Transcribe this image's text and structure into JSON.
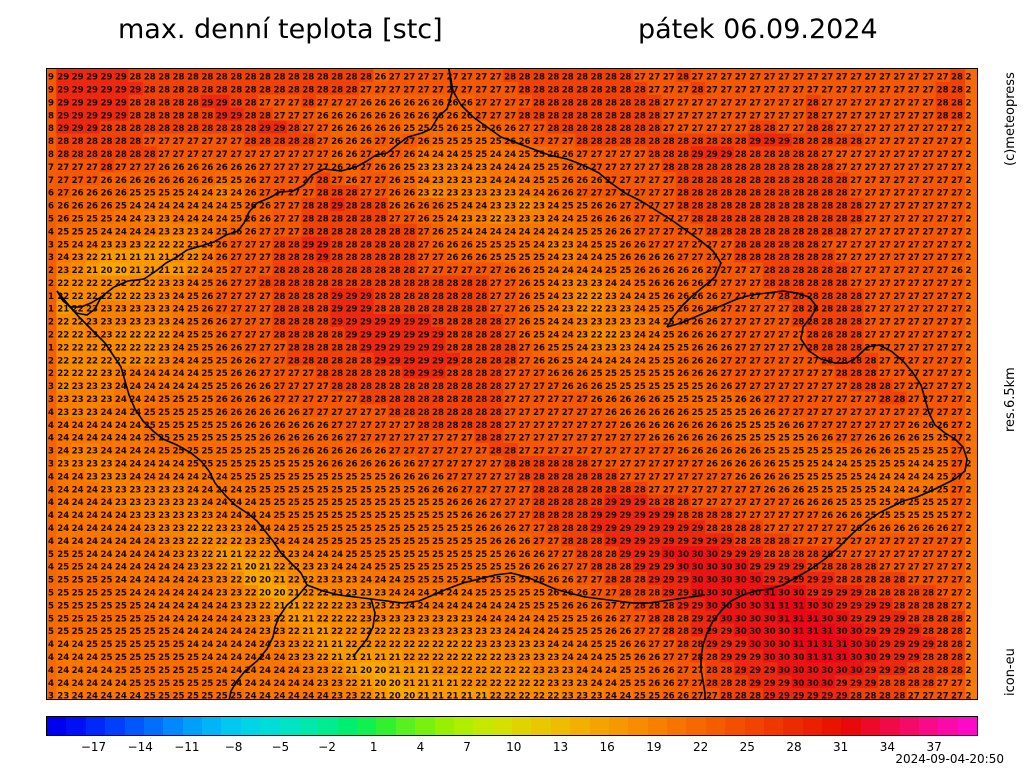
{
  "header": {
    "title_left": "max. denní teplota [stc]",
    "title_right": "pátek 06.09.2024"
  },
  "side_labels": {
    "credit": "(c)meteopress",
    "resolution": "res.6.5km",
    "model": "icon-eu"
  },
  "footer": {
    "timestamp": "2024-09-04-20:50"
  },
  "colors": {
    "background": "#ffffff",
    "border": "#000000",
    "value_text": "#1a0a00",
    "country_border": "#000000"
  },
  "map": {
    "value_grid": [
      "9 29 29 29 29 29 28 28 28 28 28 28 28 28 28 28 28 28 28 28 28 28 28 26 27 27 27 27 27 27 27 27 28 28 28 28 28 28 28 28 28 27 27 27 28 27 27 27 27 27 27 27 27 27 27 27 27 27 27 27 27 27 27 28 2",
      "9 29 29 29 29 29 29 28 28 28 28 28 28 28 28 28 28 28 28 28 28 28 27 27 27 27 27 27 27 27 27 27 27 28 28 28 28 28 28 28 28 28 27 27 27 28 27 27 27 27 27 27 27 27 27 27 27 27 27 27 27 27 28 28 2",
      "9 29 29 29 29 29 28 28 28 28 28 29 29 28 28 27 27 27 28 27 27 27 26 26 26 26 26 26 26 26 27 27 27 27 28 28 28 28 28 28 28 28 28 27 27 27 27 27 27 27 27 27 27 28 27 27 27 27 27 27 27 27 28 28 2",
      "8 29 29 29 29 29 28 28 28 28 28 28 29 29 28 28 27 27 27 26 26 26 26 26 26 26 26 26 26 26 27 27 27 28 28 28 28 28 28 28 28 28 28 27 27 27 27 27 27 27 27 27 27 28 27 27 27 27 27 27 27 27 28 28 2",
      "8 29 29 29 28 28 28 28 28 28 28 28 28 28 28 29 29 28 27 27 26 26 26 26 26 25 25 25 26 25 25 26 26 27 27 28 28 28 28 28 28 28 28 27 27 27 27 27 27 28 28 27 27 28 28 27 27 27 27 27 27 27 27 27 2",
      "8 28 28 28 28 28 28 27 27 27 27 27 27 27 28 28 28 28 28 27 26 26 26 27 26 27 26 25 25 25 25 25 26 26 27 27 27 28 28 28 28 28 28 28 28 28 28 28 28 29 29 29 28 28 28 28 28 27 27 27 27 27 27 27 2",
      "8 28 28 28 28 28 28 28 27 27 27 27 27 27 27 27 27 27 27 27 26 26 27 26 27 26 24 24 24 25 25 24 24 25 25 26 26 27 27 27 27 27 28 28 28 29 29 29 28 28 28 28 28 28 27 27 27 27 27 27 27 27 27 27 2",
      "7 27 27 27 28 27 27 27 26 26 26 26 26 26 26 27 27 27 27 27 26 26 27 26 26 25 23 23 23 24 23 24 24 24 25 25 26 26 27 27 27 27 27 28 28 28 28 28 28 28 28 28 28 28 28 27 27 27 27 27 27 27 27 27 2",
      "7 27 27 27 26 26 26 26 26 26 26 26 25 25 26 27 27 27 27 28 27 26 27 27 26 25 24 23 23 23 23 24 24 24 25 25 26 26 26 27 27 27 27 27 28 28 28 28 28 28 28 28 28 28 28 28 27 27 27 27 27 27 27 27 2",
      "6 27 26 26 26 26 25 25 25 25 24 24 23 24 26 27 27 27 27 28 28 28 27 27 26 26 23 22 23 23 23 23 23 24 24 26 26 27 27 27 27 27 27 27 28 28 28 28 28 28 28 28 28 28 28 28 27 27 27 27 27 27 27 27 2",
      "6 26 26 26 26 25 24 24 24 24 24 24 24 25 26 26 27 27 28 28 29 28 28 28 26 26 26 26 25 24 24 23 23 22 23 24 25 25 26 26 27 27 27 27 28 28 28 28 28 28 28 28 28 28 28 28 28 27 27 27 27 27 27 27 2",
      "5 26 25 25 25 24 24 23 23 24 24 24 24 25 26 26 27 27 28 28 28 28 28 28 27 27 26 25 24 23 23 22 23 23 23 24 24 25 26 26 26 27 27 27 27 28 28 28 28 28 28 28 28 28 28 28 28 27 27 27 27 27 27 27 2",
      "4 25 25 25 24 24 24 24 23 23 23 24 25 26 26 27 27 27 28 28 28 28 28 28 28 28 27 26 25 24 24 24 24 24 24 24 24 25 25 26 26 27 27 27 27 27 28 28 28 28 28 28 28 28 28 28 27 27 27 27 27 27 27 27 2",
      "3 25 24 24 23 23 23 22 22 22 23 24 26 27 27 27 28 28 29 29 28 28 28 28 28 28 27 26 26 26 25 25 25 25 24 23 23 24 25 25 26 26 27 27 27 27 27 27 28 28 28 28 28 28 27 27 27 27 27 27 27 27 27 27 2",
      "3 24 23 22 21 21 21 21 21 22 22 24 26 27 27 27 28 28 28 29 28 28 28 28 28 28 27 27 26 26 26 25 25 25 25 24 23 24 24 25 26 26 26 26 27 27 27 27 28 28 28 28 28 28 28 27 27 27 27 27 27 27 27 27 2",
      "2 23 22 21 20 20 21 21 21 21 22 24 25 27 27 27 28 28 28 28 28 28 28 28 28 28 27 27 27 27 27 27 26 26 25 24 24 24 24 25 25 26 26 26 26 26 27 27 27 27 28 28 28 28 28 28 27 27 27 27 27 27 27 26 2",
      "2 22 22 22 22 22 22 22 23 23 24 25 26 27 27 28 28 28 28 28 28 28 28 28 28 28 28 28 28 28 28 27 27 26 25 24 23 23 23 24 24 25 26 26 26 26 27 27 27 27 28 28 28 28 28 28 27 27 27 27 27 27 27 27 2",
      "1 22 22 22 22 22 22 23 23 24 25 26 27 27 27 27 28 28 28 28 29 29 29 28 28 28 28 28 28 28 28 27 27 26 25 24 23 22 22 23 24 24 25 26 26 26 26 27 27 27 27 28 28 28 28 28 28 27 27 27 27 27 27 27 2",
      "1 21 22 23 23 23 23 23 23 24 25 26 27 27 27 27 28 28 28 28 29 29 29 28 28 28 28 28 28 28 28 27 27 26 25 24 23 22 22 23 23 24 25 25 26 26 26 27 27 27 27 27 28 28 28 28 28 27 27 27 27 27 27 27 2",
      "2 22 22 23 23 23 23 23 23 24 25 26 26 27 27 27 28 28 28 28 29 29 29 29 29 29 29 28 28 28 28 28 27 26 25 24 24 23 23 23 23 23 24 25 26 26 26 27 27 27 27 27 28 28 28 28 28 27 27 27 27 27 27 27 2",
      "2 22 22 23 23 22 22 22 22 24 25 25 26 27 27 27 28 28 28 28 28 29 29 29 29 29 29 29 28 28 28 28 27 26 25 24 24 23 22 22 23 24 24 25 26 26 26 27 27 27 27 27 27 28 28 28 28 27 27 27 27 27 27 27 2",
      "1 22 22 22 22 22 22 22 23 24 25 25 26 26 27 27 27 28 28 28 28 28 29 29 29 29 29 29 28 28 28 28 28 27 26 25 25 24 23 23 23 24 24 25 25 26 26 26 27 27 27 27 27 28 28 28 28 27 27 27 27 27 27 27 2",
      "2 22 22 22 22 22 22 22 23 24 24 25 25 26 26 27 27 28 28 28 28 28 28 29 29 29 29 29 29 28 28 28 28 27 26 26 25 24 24 24 24 24 25 25 26 26 26 27 27 27 27 27 27 27 28 28 28 28 27 27 27 27 27 27 2",
      "2 22 22 22 23 23 24 24 24 24 24 25 25 26 26 27 27 27 27 28 28 28 28 28 28 29 29 29 28 28 28 28 27 27 27 26 26 26 25 25 25 25 25 25 26 26 26 27 27 27 27 27 27 27 27 28 28 28 27 27 27 27 27 27 2",
      "3 22 23 23 23 24 24 24 24 24 24 25 25 26 26 26 27 27 27 27 28 28 28 28 28 28 28 28 28 28 28 28 27 27 27 27 26 26 26 25 25 25 25 25 25 25 26 26 27 27 27 27 27 27 27 27 28 28 28 27 27 27 27 27 2",
      "3 23 23 23 23 24 24 24 25 25 25 25 26 26 26 26 27 27 27 27 27 27 28 28 28 28 28 28 28 28 28 28 27 27 27 27 27 27 26 26 26 26 26 25 25 25 25 25 26 26 27 27 27 27 27 27 27 27 28 28 27 27 27 27 2",
      "4 23 23 23 24 24 24 25 25 25 25 25 26 26 26 26 26 26 27 27 27 27 27 27 28 28 28 28 28 28 28 28 27 27 27 27 27 27 27 26 26 26 26 26 26 25 25 25 25 26 26 27 27 27 27 27 27 27 27 27 27 27 27 27 2",
      "4 24 24 24 24 24 24 25 25 25 25 25 25 26 26 26 26 26 26 26 27 27 27 27 27 27 28 28 28 28 28 28 27 27 27 27 27 27 27 27 26 26 26 26 26 26 26 26 25 25 25 26 26 27 27 27 27 27 27 27 26 26 26 27 2",
      "4 24 24 24 24 24 24 25 25 25 25 25 25 25 25 26 26 26 26 26 26 27 27 27 27 27 27 27 27 27 28 28 27 27 27 27 27 27 27 27 27 27 26 26 26 26 26 26 25 25 25 25 25 26 26 27 27 26 26 26 26 25 25 27 2",
      "3 24 23 23 24 24 24 24 25 25 25 25 25 25 25 25 25 26 26 26 26 26 26 26 27 27 27 27 27 27 27 28 28 27 27 27 27 27 27 27 27 27 27 27 26 26 26 26 26 26 25 25 25 25 25 25 26 26 26 25 25 25 25 27 2",
      "3 23 23 23 23 24 24 24 24 24 25 25 25 25 25 25 25 25 25 26 26 26 26 26 26 26 27 27 27 27 27 27 28 28 28 28 28 28 27 27 27 27 27 27 27 27 26 26 26 26 26 25 25 25 24 24 25 25 25 25 24 24 25 27 2",
      "4 24 24 23 23 23 24 24 24 24 24 24 24 25 25 25 25 25 25 25 25 25 25 25 26 26 26 26 27 27 27 27 27 28 28 28 28 28 28 28 27 27 27 27 27 27 27 27 26 26 26 26 25 25 25 25 25 24 24 24 24 24 25 27 2",
      "4 24 24 24 23 23 23 23 23 23 24 24 24 24 25 25 25 25 25 25 25 25 25 25 25 25 26 26 26 27 27 27 27 27 28 28 28 28 28 28 28 28 27 27 27 27 27 27 27 27 26 26 26 25 25 25 25 25 24 24 24 24 25 27 2",
      "4 24 24 24 24 23 23 23 23 23 23 24 24 24 24 25 25 25 25 25 25 25 25 25 25 25 25 25 26 26 26 27 27 27 28 28 28 28 28 29 29 29 28 28 28 27 27 27 27 27 27 27 26 26 26 25 25 25 25 25 25 25 25 27 2",
      "4 24 24 24 24 24 23 23 23 23 23 23 24 24 24 24 25 25 25 25 25 25 25 25 25 25 25 25 25 26 26 26 27 27 28 28 28 28 29 29 29 29 29 29 28 28 28 28 27 27 27 27 27 27 26 26 26 25 25 25 25 25 25 27 2",
      "4 24 24 24 24 24 24 23 23 23 22 22 23 23 24 24 24 25 25 25 25 25 25 25 25 25 25 25 25 25 26 26 26 27 27 28 28 28 29 29 29 29 29 29 29 29 28 28 28 28 27 27 27 27 27 27 26 26 26 26 26 26 26 27 2",
      "4 24 24 24 24 24 24 24 23 23 22 22 22 22 23 23 24 24 24 25 25 25 25 25 25 25 25 25 25 25 25 26 26 26 27 27 28 28 28 29 29 29 29 29 29 29 29 29 28 28 28 28 27 27 27 27 27 27 27 27 27 27 27 27 2",
      "5 25 25 24 24 24 24 24 24 23 23 22 21 21 22 22 23 23 24 24 24 25 25 25 25 25 25 25 25 25 25 25 26 26 26 27 27 28 28 28 29 29 29 30 30 30 30 29 29 29 28 28 28 28 28 27 27 27 27 27 27 27 27 27 2",
      "4 25 25 24 24 24 24 24 24 24 23 23 22 21 20 21 22 22 23 23 24 24 24 25 25 25 25 25 25 25 25 25 25 26 26 26 27 27 28 28 28 29 29 29 30 30 30 30 30 29 29 29 29 28 28 28 28 28 27 27 27 27 27 27 2",
      "5 25 25 25 25 24 24 24 24 24 24 23 23 22 20 20 21 22 22 23 23 23 24 24 24 25 25 25 25 25 25 25 25 25 26 26 26 27 27 28 28 28 29 29 29 30 30 30 30 30 29 29 29 29 29 28 28 28 28 28 27 27 27 27 2",
      "5 25 25 25 25 25 24 24 24 24 24 24 23 23 22 20 20 21 22 22 23 23 23 23 24 24 24 24 24 24 25 25 25 25 25 26 26 26 27 27 28 28 28 29 29 30 30 30 30 30 31 30 30 29 29 29 29 28 28 28 28 28 27 27 2",
      "5 25 25 25 25 25 25 24 24 24 24 24 24 23 23 22 21 21 22 22 22 23 23 23 23 24 24 24 24 24 24 24 24 25 25 25 26 26 26 27 27 28 28 28 29 29 30 30 30 30 31 31 31 30 30 29 29 29 29 28 28 28 28 27 2",
      "5 25 25 25 25 25 25 25 24 24 24 24 24 24 23 23 22 21 21 22 22 22 23 23 23 23 23 23 23 23 24 24 24 24 24 25 25 25 26 26 27 27 28 28 28 29 29 30 30 30 30 31 31 31 30 30 29 29 29 29 28 28 28 28 2",
      "5 25 25 25 25 25 25 25 25 24 24 24 24 24 24 23 23 22 21 21 22 22 22 22 22 23 23 23 23 23 23 23 24 24 24 24 25 25 25 26 26 27 27 28 28 29 29 29 30 30 30 30 31 31 31 30 30 29 29 29 29 28 28 28 2",
      "4 24 24 25 25 25 25 25 25 25 24 24 24 24 24 24 23 23 22 21 21 22 22 22 22 22 22 22 22 22 23 23 23 23 23 24 24 24 25 25 26 26 27 27 28 28 29 29 29 30 30 30 31 31 31 31 30 30 29 29 29 29 28 28 2",
      "4 24 24 24 25 25 25 25 25 25 25 24 24 24 24 24 24 23 23 22 21 21 21 21 21 22 22 22 22 22 22 22 23 23 23 23 24 24 24 25 25 26 26 27 27 28 28 29 29 29 30 30 30 31 31 31 30 30 29 29 29 28 28 28 2",
      "4 24 24 24 24 25 25 25 25 25 25 25 24 24 24 24 24 24 23 23 22 21 20 20 21 21 21 22 22 22 22 22 22 22 23 23 23 24 24 24 25 25 26 26 27 27 28 28 29 29 29 30 30 30 30 30 30 29 29 29 28 28 28 28 2",
      "4 24 24 24 24 24 25 25 25 25 25 25 25 24 24 24 24 24 24 23 23 22 21 20 20 21 21 21 21 22 22 22 22 22 22 23 23 23 24 24 25 25 26 26 27 27 28 28 28 29 29 29 30 30 30 29 29 29 28 28 28 28 27 27 2",
      "3 23 24 24 24 24 24 25 25 25 25 25 25 25 24 24 24 24 24 24 23 23 22 21 20 20 21 21 21 21 21 22 22 22 22 22 23 23 23 24 24 25 25 26 26 27 27 28 28 28 29 29 29 29 29 29 28 28 28 28 27 27 27 27 2"
    ],
    "country_borders": [
      "M448 68 L451 92 L446 108 L437 116 L430 128 L421 132 L407 136 L396 144 L386 152 L375 154 L366 160 L355 166 L340 170 L323 168 L311 174 L303 184 L292 190 L279 191 L268 197 L256 202 L248 211 L243 222 L237 230 L225 234 L213 241 L200 245 L186 249 L176 256 L165 262 L155 270 L143 278 L127 280 L113 286 L100 296 L94 308 L86 314 L75 312 L63 300 L56 290",
      "M56 290 L66 302 L78 316 L92 330 L104 342 L112 354 L120 366 L124 380 L128 394 L134 408 L142 420 L152 430 L162 438 L176 444 L190 452 L200 460 L208 470 L214 482 L224 494 L234 504 L246 512 L256 520 L264 530 L272 540 L280 552 L290 562 L300 572 L306 584 L296 596 L286 604 L278 616 L274 626 L272 636 L266 648 L256 660 L244 670 L236 680 L230 690 L228 700",
      "M448 68 L452 90 L460 104 L472 116 L486 126 L500 136 L516 142 L532 148 L548 154 L566 158 L582 164 L598 172 L610 182 L624 192 L640 200 L656 210 L672 220 L686 230 L700 240 L712 250 L720 262 L714 276 L702 286 L690 296 L680 306 L672 316 L666 326",
      "M666 326 L680 322 L694 316 L708 310 L722 304 L736 298 L750 294 L766 292 L782 290 L796 292 L808 296 L816 306 L810 316 L802 326 L800 338 L808 350 L820 358 L834 362 L846 362 L856 356 L866 346 L878 344 L890 350 L902 360 L912 372 L920 384 L924 398 L928 412 L934 424 L944 432 L954 438 L962 446 L966 458 L964 470 L954 478 L942 484 L930 490 L916 496 L902 500 L890 506 L878 512 L866 520",
      "M866 520 L852 532 L838 546 L824 558 L810 568 L796 576 L782 584 L768 588 L754 590 L742 594 L730 600 L720 610 L712 620 L706 632 L702 644 L700 656 L700 668 L702 680 L704 692 L704 700",
      "M306 584 L322 590 L338 594 L354 596 L370 598 L386 600 L402 602 L418 600 L432 594 L446 588 L462 582 L478 578 L494 574 L510 572 L526 576 L540 582 L554 588 L568 592 L584 596 L600 598 L616 600 L632 602 L648 602 L662 600 L676 598 L690 596 L704 594",
      "M370 598 L374 612 L372 626 L366 638 L358 648 L352 656",
      "M56 290 L62 300 L70 306 L80 306 L90 302 L100 296"
    ]
  },
  "color_scale": {
    "colors": [
      "#0000ee",
      "#0010f4",
      "#0028f8",
      "#0040fa",
      "#0058fc",
      "#0070fc",
      "#0088fc",
      "#00a0fa",
      "#00b4f8",
      "#00c8f0",
      "#00d4e6",
      "#00dcd8",
      "#00e4c4",
      "#00e8ac",
      "#00ec90",
      "#00ee70",
      "#10f050",
      "#30f030",
      "#58f020",
      "#78f010",
      "#98f000",
      "#b0ee00",
      "#c4e800",
      "#d4e000",
      "#e0d400",
      "#e8c800",
      "#eebc00",
      "#f2b000",
      "#f4a400",
      "#f69800",
      "#f88c00",
      "#f88000",
      "#f87400",
      "#f66800",
      "#f45c00",
      "#f25000",
      "#f04400",
      "#ee3800",
      "#ec2c00",
      "#ea2000",
      "#e81400",
      "#e80a0a",
      "#ec0a28",
      "#f00a48",
      "#f40a68",
      "#f80a88",
      "#fa0aa8",
      "#fc0ac8"
    ],
    "labels": [
      "−17",
      "−14",
      "−11",
      "−8",
      "−5",
      "−2",
      "1",
      "4",
      "7",
      "10",
      "13",
      "16",
      "19",
      "22",
      "25",
      "28",
      "31",
      "34",
      "37"
    ]
  }
}
